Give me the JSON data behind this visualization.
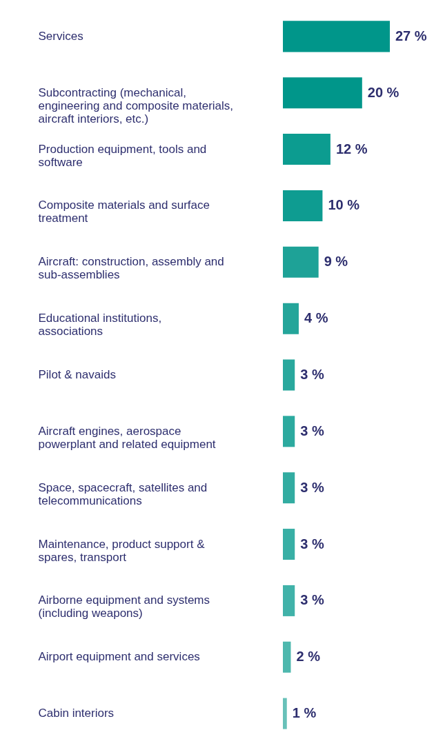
{
  "chart_data": {
    "type": "bar",
    "orientation": "horizontal",
    "categories": [
      "Services",
      "Subcontracting (mechanical, engineering and composite materials, aircraft interiors, etc.)",
      "Production equipment, tools and software",
      "Composite materials and surface treatment",
      "Aircraft: construction, assembly and sub-assemblies",
      "Educational institutions, associations",
      "Pilot & navaids",
      "Aircraft engines, aerospace powerplant and related equipment",
      "Space, spacecraft, satellites and telecommunications",
      "Maintenance, product support & spares, transport",
      "Airborne equipment and systems (including weapons)",
      "Airport equipment and services",
      "Cabin interiors"
    ],
    "values": [
      27,
      20,
      12,
      10,
      9,
      4,
      3,
      3,
      3,
      3,
      3,
      2,
      1
    ],
    "value_labels": [
      "27 %",
      "20 %",
      "12 %",
      "10 %",
      "9 %",
      "4 %",
      "3 %",
      "3 %",
      "3 %",
      "3 %",
      "3 %",
      "2 %",
      "1 %"
    ],
    "colors": [
      "#00968a",
      "#00968a",
      "#0c9c90",
      "#0e9c91",
      "#1ea297",
      "#24a59a",
      "#29a89d",
      "#2caa9f",
      "#32aca1",
      "#38afa5",
      "#41b2a9",
      "#4eb8ae",
      "#68c1b9"
    ],
    "xlim": [
      0,
      27
    ],
    "tick_labels": "y"
  }
}
